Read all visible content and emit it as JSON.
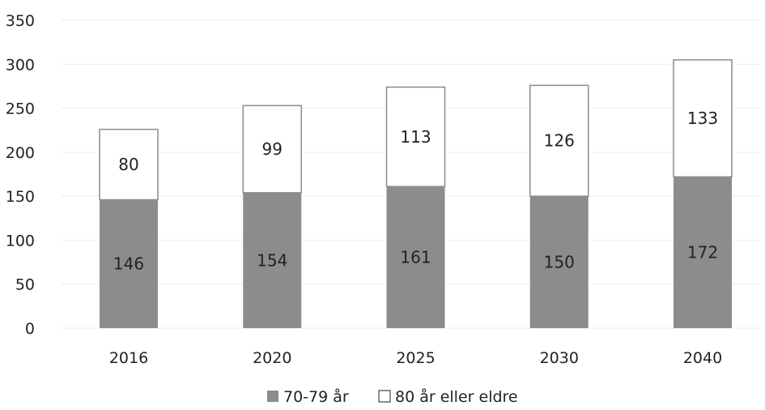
{
  "chart_data": {
    "type": "bar",
    "stacked": true,
    "title": "",
    "xlabel": "",
    "ylabel": "",
    "categories": [
      "2016",
      "2020",
      "2025",
      "2030",
      "2040"
    ],
    "series": [
      {
        "name": "70-79 år",
        "values": [
          146,
          154,
          161,
          150,
          172
        ],
        "color": "#8c8c8c"
      },
      {
        "name": "80 år eller eldre",
        "values": [
          80,
          99,
          113,
          126,
          133
        ],
        "color": "#ffffff"
      }
    ],
    "ylim": [
      0,
      350
    ],
    "yticks": [
      0,
      50,
      100,
      150,
      200,
      250,
      300,
      350
    ],
    "grid": true,
    "legend_position": "bottom-center",
    "data_labels": true
  },
  "colors": {
    "bar_dark": "#8c8c8c",
    "bar_light": "#ffffff",
    "bar_outline": "#8c8c8c",
    "grid": "#eeeeee"
  }
}
